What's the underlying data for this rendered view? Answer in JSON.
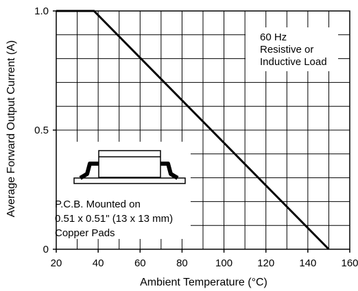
{
  "chart_data": {
    "type": "line",
    "title": "",
    "xlabel": "Ambient Temperature (°C)",
    "ylabel": "Average Forward Output Current (A)",
    "xlim": [
      20,
      160
    ],
    "ylim": [
      0,
      1.0
    ],
    "x_ticks": [
      20,
      40,
      60,
      80,
      100,
      120,
      140,
      160
    ],
    "x_tick_labels": [
      "20",
      "40",
      "60",
      "80",
      "100",
      "120",
      "140",
      "160"
    ],
    "y_ticks": [
      0,
      0.5,
      1.0
    ],
    "y_tick_labels": [
      "0",
      "0.5",
      "1.0"
    ],
    "grid": true,
    "series": [
      {
        "x": [
          20,
          38,
          150
        ],
        "y": [
          1.0,
          1.0,
          0
        ]
      }
    ],
    "annotations": {
      "load": [
        "60 Hz",
        "Resistive or",
        "Inductive Load"
      ],
      "mounting": [
        "P.C.B. Mounted on",
        "0.51 x 0.51\" (13 x 13 mm)",
        "Copper Pads"
      ]
    },
    "colors": {
      "line": "#000000",
      "grid": "#000000"
    }
  }
}
